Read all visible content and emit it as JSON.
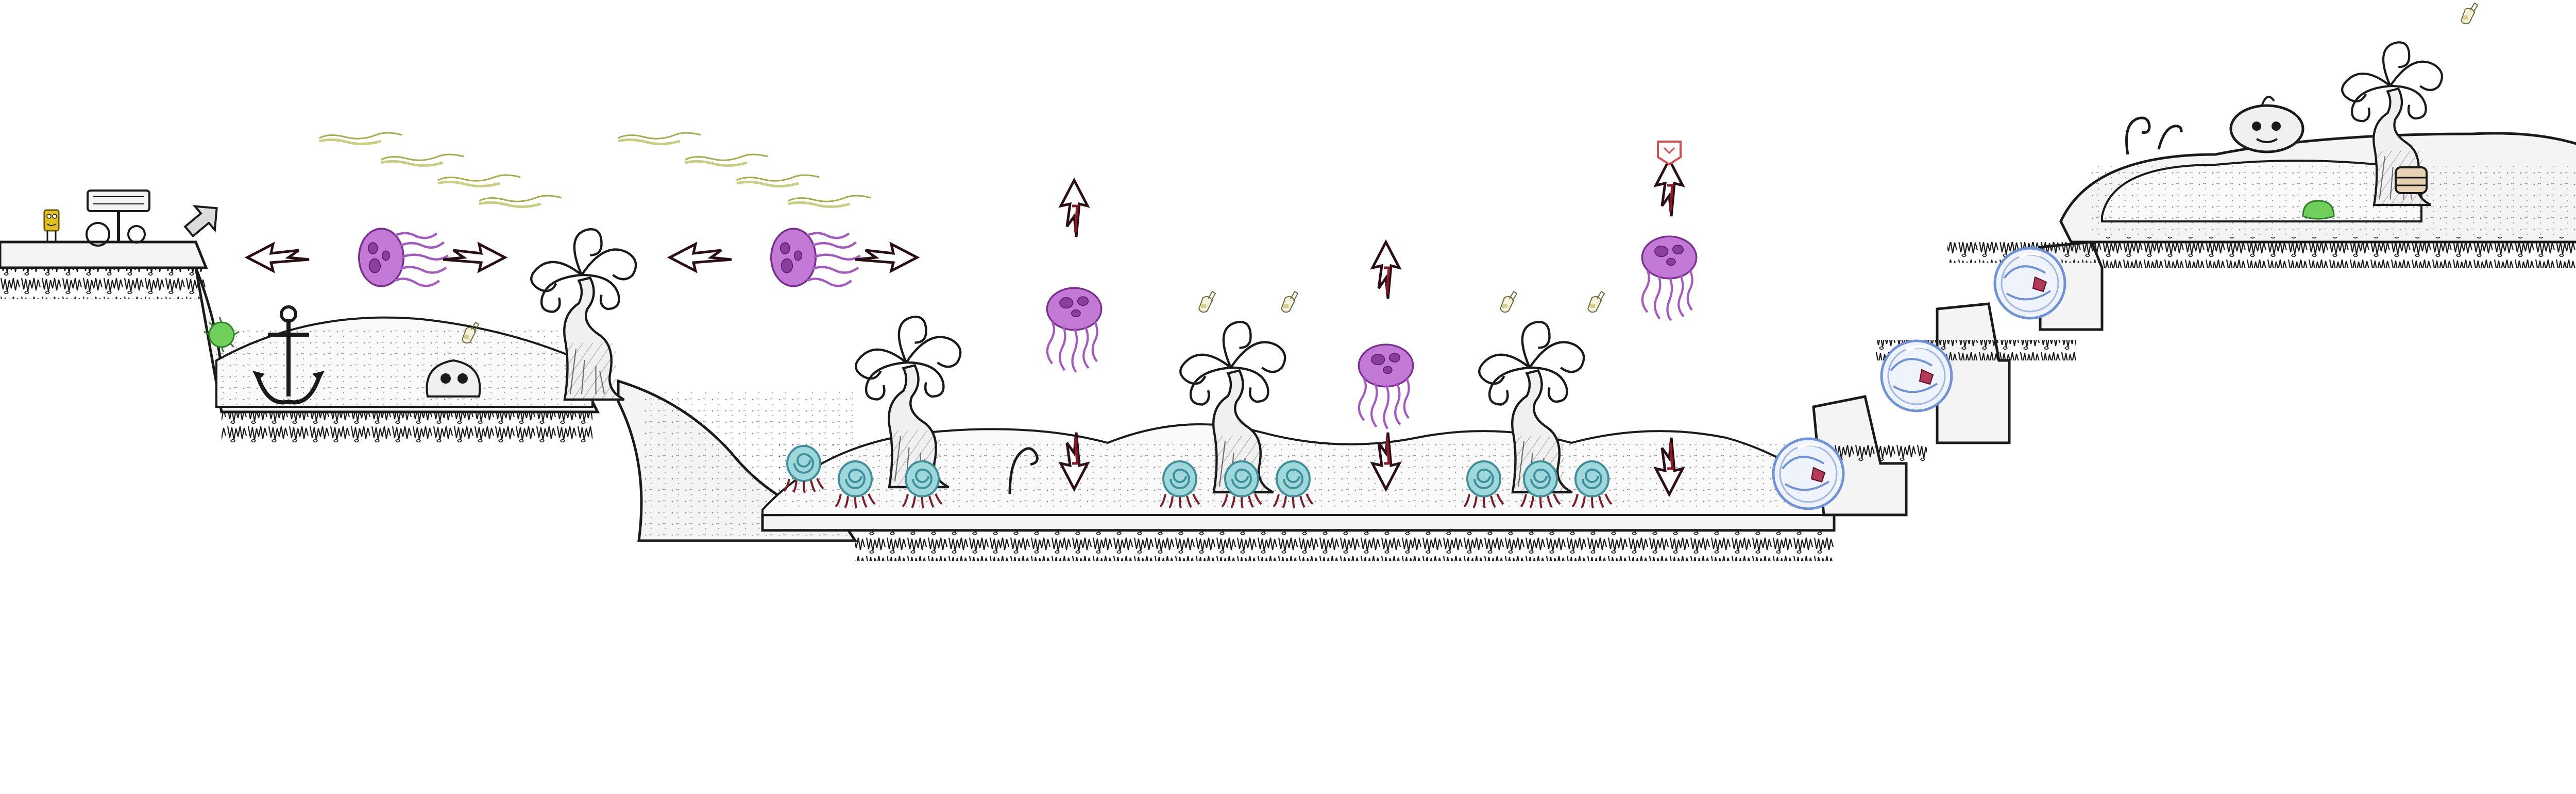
{
  "level": {
    "ink_color": "#1a1a1a",
    "ground_fill": "#f4f4f4",
    "hill_fill": "#fafafa"
  },
  "colors": {
    "jellyfish": "#c27ad6",
    "jellyfish_outline": "#7a2f8f",
    "arrow_dark": "#2a0f14",
    "arrow_red": "#8a1a2a",
    "snail_shell": "#9fd8dc",
    "snail_outline": "#3f8f99",
    "bubble": "#6f93d6",
    "bubble_core": "#b53a5a",
    "sponge": "#e0c020",
    "green_pickup": "#6fcf5a",
    "kelp_trail": "#c9cf80",
    "checkpoint_flag": "#d94a4a"
  },
  "entities": {
    "player": "sponge-character-icon",
    "start_sign": "wooden-signpost-icon",
    "exit_arrow": "exit-arrow-icon",
    "green_pickup": "green-spiky-pickup-icon",
    "anchor": "anchor-icon",
    "jellyfish_horizontal": [
      "jellyfish-icon",
      "jellyfish-icon"
    ],
    "jellyfish_vertical": [
      "jellyfish-icon",
      "jellyfish-icon",
      "jellyfish-icon"
    ],
    "snails": "sea-snail-icon",
    "bubbles": "bubble-enemy-icon",
    "trees": "coral-tree-icon",
    "checkpoint": "checkpoint-flag-icon",
    "bottles": "message-bottle-icon",
    "boulder_creature": "boulder-creature-icon"
  }
}
